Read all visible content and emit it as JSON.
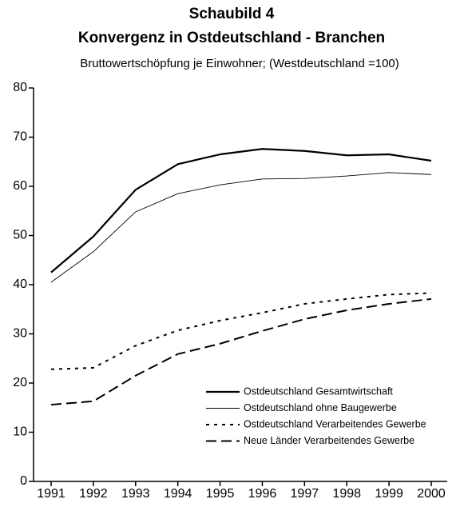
{
  "chart_data": {
    "type": "line",
    "title": "Schaubild 4",
    "subtitle": "Konvergenz in Ostdeutschland - Branchen",
    "description": "Bruttowertschöpfung je Einwohner; (Westdeutschland =100)",
    "categories": [
      "1991",
      "1992",
      "1993",
      "1994",
      "1995",
      "1996",
      "1997",
      "1998",
      "1999",
      "2000"
    ],
    "series": [
      {
        "name": "Ostdeutschland Gesamtwirtschaft",
        "color": "#000000",
        "line_style": "solid",
        "line_width": 2.2,
        "values": [
          42.5,
          49.8,
          59.3,
          64.5,
          66.5,
          67.6,
          67.2,
          66.3,
          66.5,
          65.2
        ]
      },
      {
        "name": "Ostdeutschland ohne Baugewerbe",
        "color": "#000000",
        "line_style": "solid",
        "line_width": 0.9,
        "values": [
          40.5,
          46.7,
          54.8,
          58.5,
          60.3,
          61.5,
          61.6,
          62.1,
          62.8,
          62.4
        ]
      },
      {
        "name": "Ostdeutschland Verarbeitendes Gewerbe",
        "color": "#000000",
        "line_style": "dotted",
        "line_width": 2,
        "values": [
          22.8,
          23.1,
          27.6,
          30.7,
          32.7,
          34.3,
          36.1,
          37.1,
          38,
          38.3
        ]
      },
      {
        "name": "Neue Länder Verarbeitendes Gewerbe",
        "color": "#000000",
        "line_style": "dashed",
        "line_width": 2,
        "values": [
          15.6,
          16.3,
          21.5,
          25.9,
          28,
          30.6,
          33,
          34.8,
          36.1,
          37.1
        ]
      }
    ],
    "ylim": [
      0,
      80
    ],
    "yticks": [
      0,
      10,
      20,
      30,
      40,
      50,
      60,
      70,
      80
    ],
    "grid": false,
    "legend": "lower right"
  }
}
